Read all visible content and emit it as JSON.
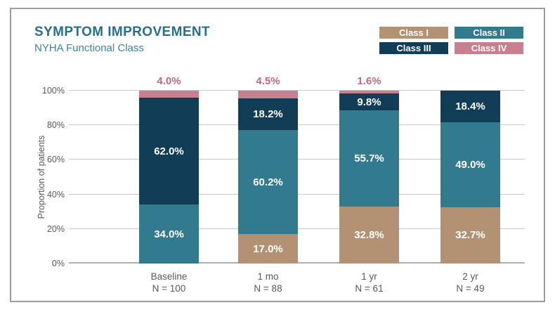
{
  "chart_data": {
    "type": "stacked-bar",
    "title": "SYMPTOM IMPROVEMENT",
    "subtitle": "NYHA Functional Class",
    "ylabel": "Proportion of patients",
    "ylim": [
      0,
      100
    ],
    "grid": true,
    "legend_position": "top-right",
    "yticks": [
      {
        "value": 0,
        "label": "0%"
      },
      {
        "value": 20,
        "label": "20%"
      },
      {
        "value": 40,
        "label": "40%"
      },
      {
        "value": 60,
        "label": "60%"
      },
      {
        "value": 80,
        "label": "80%"
      },
      {
        "value": 100,
        "label": "100%"
      }
    ],
    "legend": [
      {
        "label": "Class I",
        "color": "#b39273"
      },
      {
        "label": "Class II",
        "color": "#327a8e"
      },
      {
        "label": "Class III",
        "color": "#113d56"
      },
      {
        "label": "Class IV",
        "color": "#c87f8e"
      }
    ],
    "series_colors": {
      "Class I": "#b39273",
      "Class II": "#327a8e",
      "Class III": "#113d56",
      "Class IV": "#c87f8e"
    },
    "bars": [
      {
        "category": "Baseline",
        "n_label": "N = 100",
        "above_label": "4.0%",
        "segments": [
          {
            "series": "Class II",
            "value": 34.0,
            "label": "34.0%"
          },
          {
            "series": "Class III",
            "value": 62.0,
            "label": "62.0%"
          },
          {
            "series": "Class IV",
            "value": 4.0,
            "label": null
          }
        ]
      },
      {
        "category": "1 mo",
        "n_label": "N = 88",
        "above_label": "4.5%",
        "segments": [
          {
            "series": "Class I",
            "value": 17.0,
            "label": "17.0%"
          },
          {
            "series": "Class II",
            "value": 60.2,
            "label": "60.2%"
          },
          {
            "series": "Class III",
            "value": 18.2,
            "label": "18.2%"
          },
          {
            "series": "Class IV",
            "value": 4.5,
            "label": null
          }
        ]
      },
      {
        "category": "1 yr",
        "n_label": "N = 61",
        "above_label": "1.6%",
        "segments": [
          {
            "series": "Class I",
            "value": 32.8,
            "label": "32.8%"
          },
          {
            "series": "Class II",
            "value": 55.7,
            "label": "55.7%"
          },
          {
            "series": "Class III",
            "value": 9.8,
            "label": "9.8%"
          },
          {
            "series": "Class IV",
            "value": 1.6,
            "label": null
          }
        ]
      },
      {
        "category": "2 yr",
        "n_label": "N = 49",
        "above_label": null,
        "segments": [
          {
            "series": "Class I",
            "value": 32.7,
            "label": "32.7%"
          },
          {
            "series": "Class II",
            "value": 49.0,
            "label": "49.0%"
          },
          {
            "series": "Class III",
            "value": 18.4,
            "label": "18.4%"
          }
        ]
      }
    ],
    "colors": {
      "title": "#256f8e",
      "subtitle": "#3c84a0",
      "axis_text": "#57585a",
      "gridline": "#c7c7c7",
      "above_label_text": "#c0697c",
      "card_border": "#9b9b9b"
    }
  }
}
